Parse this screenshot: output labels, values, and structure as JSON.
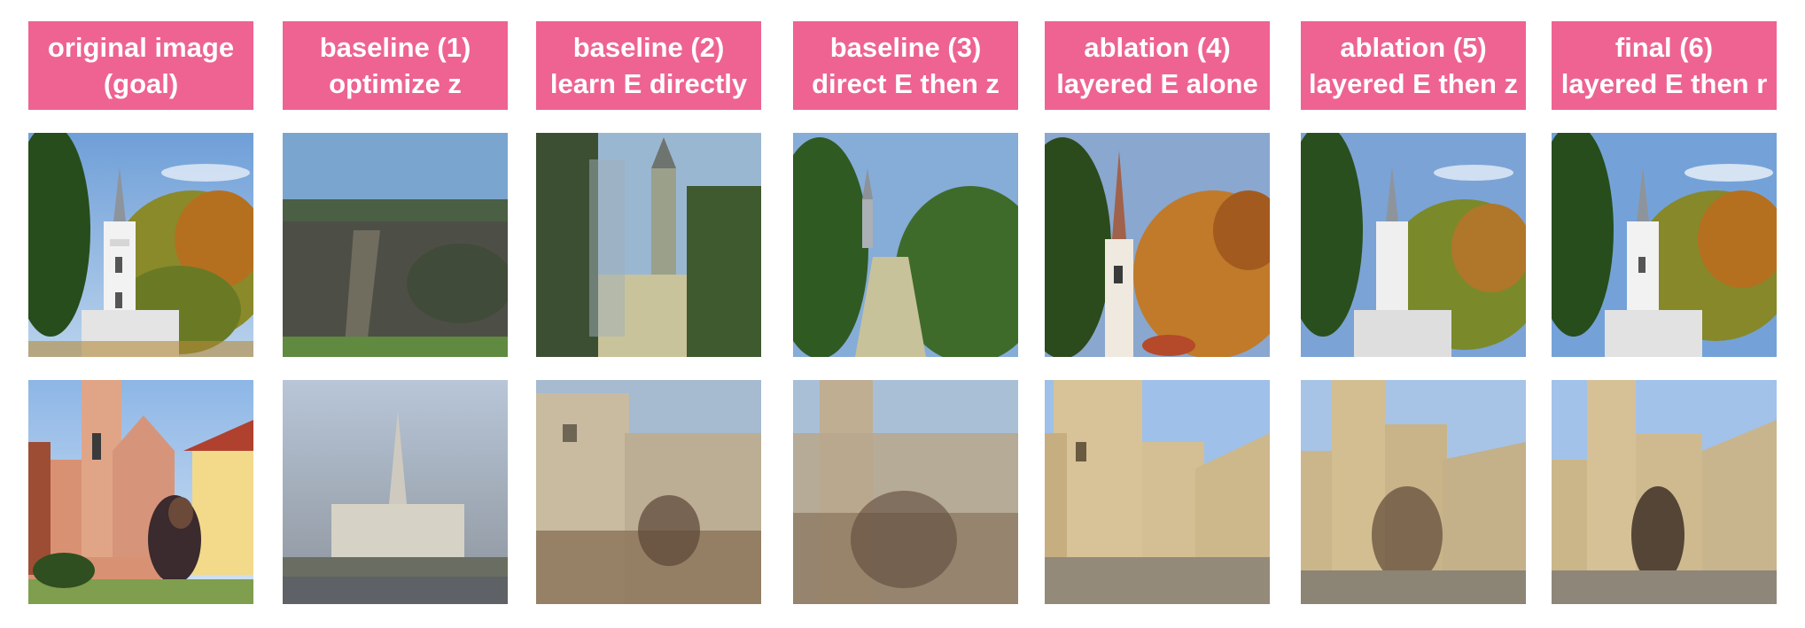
{
  "columns": [
    {
      "line1": "original image",
      "line2": "(goal)"
    },
    {
      "line1": "baseline (1)",
      "line2": "optimize z"
    },
    {
      "line1": "baseline (2)",
      "line2": "learn E directly"
    },
    {
      "line1": "baseline (3)",
      "line2": "direct E then z"
    },
    {
      "line1": "ablation (4)",
      "line2": "layered E alone"
    },
    {
      "line1": "ablation (5)",
      "line2": "layered E then z"
    },
    {
      "line1": "final (6)",
      "line2": "layered E then r"
    }
  ],
  "colors": {
    "header_bg": "#ee6392",
    "header_text": "#ffffff",
    "sky": "#7ea6d6",
    "foliage": "#3f6a2a",
    "stone": "#cdb990"
  }
}
